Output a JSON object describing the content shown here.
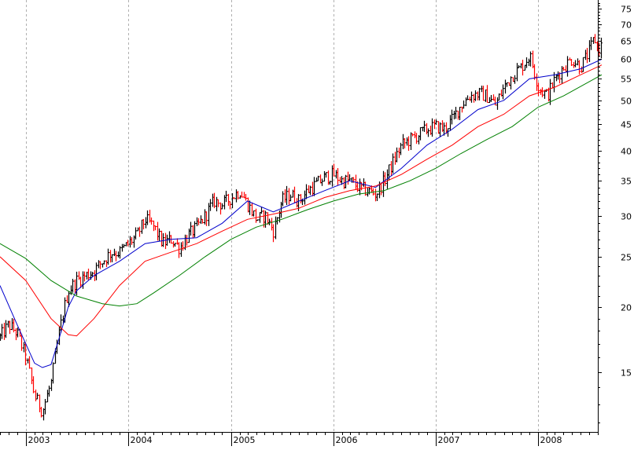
{
  "chart_data": {
    "type": "line",
    "subtype": "ohlc-bar-with-moving-averages",
    "title": "",
    "xlabel": "",
    "ylabel": "",
    "y_scale": "log",
    "ylim": [
      11.5,
      78
    ],
    "y_ticks": [
      15,
      20,
      25,
      30,
      35,
      40,
      45,
      50,
      55,
      60,
      65,
      70,
      75
    ],
    "y_axis_position": "right",
    "x_ticks": [
      "2003",
      "2004",
      "2005",
      "2006",
      "2007",
      "2008"
    ],
    "xlim": [
      "2002-10",
      "2008-08"
    ],
    "grid": {
      "vertical": "dashed-gray",
      "horizontal": "off"
    },
    "colors": {
      "up_bar": "#000000",
      "down_bar": "#ff0000",
      "ma_fast": "#0000cc",
      "ma_mid": "#ff0000",
      "ma_slow": "#008000"
    },
    "price_path": [
      [
        "2002-10-01",
        17.5
      ],
      [
        "2002-11-01",
        18.5
      ],
      [
        "2002-12-01",
        17.8
      ],
      [
        "2003-01-01",
        16.0
      ],
      [
        "2003-02-01",
        13.5
      ],
      [
        "2003-03-01",
        12.6
      ],
      [
        "2003-04-01",
        14.3
      ],
      [
        "2003-05-01",
        18.0
      ],
      [
        "2003-06-01",
        21.5
      ],
      [
        "2003-07-01",
        22.5
      ],
      [
        "2003-08-01",
        23.0
      ],
      [
        "2003-09-01",
        23.5
      ],
      [
        "2003-10-01",
        24.5
      ],
      [
        "2003-11-01",
        25.5
      ],
      [
        "2003-12-01",
        25.5
      ],
      [
        "2004-01-01",
        26.5
      ],
      [
        "2004-02-01",
        27.5
      ],
      [
        "2004-03-01",
        29.5
      ],
      [
        "2004-04-01",
        28.5
      ],
      [
        "2004-05-01",
        26.5
      ],
      [
        "2004-06-01",
        27.0
      ],
      [
        "2004-07-01",
        26.0
      ],
      [
        "2004-08-01",
        27.5
      ],
      [
        "2004-09-01",
        28.5
      ],
      [
        "2004-10-01",
        30.0
      ],
      [
        "2004-11-01",
        32.0
      ],
      [
        "2004-12-01",
        31.5
      ],
      [
        "2005-01-01",
        32.5
      ],
      [
        "2005-02-01",
        33.5
      ],
      [
        "2005-03-01",
        31.5
      ],
      [
        "2005-04-01",
        29.5
      ],
      [
        "2005-05-01",
        30.0
      ],
      [
        "2005-06-01",
        28.0
      ],
      [
        "2005-07-01",
        32.0
      ],
      [
        "2005-08-01",
        33.0
      ],
      [
        "2005-09-01",
        32.0
      ],
      [
        "2005-10-01",
        33.5
      ],
      [
        "2005-11-01",
        34.5
      ],
      [
        "2005-12-01",
        35.5
      ],
      [
        "2006-01-01",
        36.0
      ],
      [
        "2006-02-01",
        35.0
      ],
      [
        "2006-03-01",
        35.0
      ],
      [
        "2006-04-01",
        34.0
      ],
      [
        "2006-05-01",
        33.5
      ],
      [
        "2006-06-01",
        33.0
      ],
      [
        "2006-07-01",
        35.0
      ],
      [
        "2006-08-01",
        38.0
      ],
      [
        "2006-09-01",
        41.0
      ],
      [
        "2006-10-01",
        42.0
      ],
      [
        "2006-11-01",
        43.0
      ],
      [
        "2006-12-01",
        44.0
      ],
      [
        "2007-01-01",
        44.5
      ],
      [
        "2007-02-01",
        44.0
      ],
      [
        "2007-03-01",
        46.0
      ],
      [
        "2007-04-01",
        49.0
      ],
      [
        "2007-05-01",
        51.0
      ],
      [
        "2007-06-01",
        51.5
      ],
      [
        "2007-07-01",
        51.0
      ],
      [
        "2007-08-01",
        49.0
      ],
      [
        "2007-09-01",
        53.0
      ],
      [
        "2007-10-01",
        56.0
      ],
      [
        "2007-11-01",
        58.0
      ],
      [
        "2007-12-01",
        61.0
      ],
      [
        "2008-01-01",
        53.0
      ],
      [
        "2008-02-01",
        51.0
      ],
      [
        "2008-03-01",
        55.0
      ],
      [
        "2008-04-01",
        58.0
      ],
      [
        "2008-05-01",
        60.0
      ],
      [
        "2008-06-01",
        58.0
      ],
      [
        "2008-07-01",
        62.0
      ],
      [
        "2008-07-20",
        66.0
      ],
      [
        "2008-08-01",
        62.5
      ],
      [
        "2008-08-15",
        64.0
      ]
    ],
    "series": [
      {
        "style": "ma-fast",
        "points": [
          [
            "2002-10-01",
            22.0
          ],
          [
            "2002-12-01",
            18.5
          ],
          [
            "2003-02-01",
            15.6
          ],
          [
            "2003-03-01",
            15.3
          ],
          [
            "2003-04-01",
            15.5
          ],
          [
            "2003-05-01",
            17.5
          ],
          [
            "2003-06-01",
            20.0
          ],
          [
            "2003-07-01",
            21.5
          ],
          [
            "2003-09-01",
            23.0
          ],
          [
            "2003-12-01",
            24.5
          ],
          [
            "2004-03-01",
            26.5
          ],
          [
            "2004-06-01",
            27.0
          ],
          [
            "2004-09-01",
            27.2
          ],
          [
            "2004-12-01",
            29.0
          ],
          [
            "2005-03-01",
            32.0
          ],
          [
            "2005-06-01",
            30.5
          ],
          [
            "2005-09-01",
            32.0
          ],
          [
            "2005-12-01",
            33.5
          ],
          [
            "2006-03-01",
            35.0
          ],
          [
            "2006-06-01",
            34.0
          ],
          [
            "2006-09-01",
            37.0
          ],
          [
            "2006-12-01",
            41.0
          ],
          [
            "2007-03-01",
            44.0
          ],
          [
            "2007-06-01",
            48.0
          ],
          [
            "2007-09-01",
            50.0
          ],
          [
            "2007-12-01",
            55.0
          ],
          [
            "2008-03-01",
            56.0
          ],
          [
            "2008-06-01",
            57.5
          ],
          [
            "2008-08-15",
            60.0
          ]
        ]
      },
      {
        "style": "ma-mid",
        "points": [
          [
            "2002-10-01",
            25.0
          ],
          [
            "2003-01-01",
            22.5
          ],
          [
            "2003-04-01",
            19.0
          ],
          [
            "2003-06-01",
            17.7
          ],
          [
            "2003-07-01",
            17.6
          ],
          [
            "2003-09-01",
            19.0
          ],
          [
            "2003-12-01",
            22.0
          ],
          [
            "2004-03-01",
            24.5
          ],
          [
            "2004-06-01",
            25.5
          ],
          [
            "2004-09-01",
            26.5
          ],
          [
            "2004-12-01",
            28.0
          ],
          [
            "2005-03-01",
            29.5
          ],
          [
            "2005-06-01",
            30.2
          ],
          [
            "2005-09-01",
            31.0
          ],
          [
            "2005-12-01",
            32.5
          ],
          [
            "2006-03-01",
            33.5
          ],
          [
            "2006-06-01",
            34.2
          ],
          [
            "2006-09-01",
            36.0
          ],
          [
            "2006-12-01",
            38.5
          ],
          [
            "2007-03-01",
            41.0
          ],
          [
            "2007-06-01",
            44.5
          ],
          [
            "2007-09-01",
            47.0
          ],
          [
            "2007-12-01",
            51.0
          ],
          [
            "2008-03-01",
            53.0
          ],
          [
            "2008-06-01",
            56.0
          ],
          [
            "2008-08-15",
            58.5
          ]
        ]
      },
      {
        "style": "ma-slow",
        "points": [
          [
            "2002-10-01",
            26.5
          ],
          [
            "2003-01-01",
            24.8
          ],
          [
            "2003-04-01",
            22.5
          ],
          [
            "2003-07-01",
            21.0
          ],
          [
            "2003-10-01",
            20.3
          ],
          [
            "2003-12-01",
            20.1
          ],
          [
            "2004-02-01",
            20.3
          ],
          [
            "2004-04-01",
            21.3
          ],
          [
            "2004-07-01",
            23.0
          ],
          [
            "2004-10-01",
            25.0
          ],
          [
            "2005-01-01",
            27.0
          ],
          [
            "2005-04-01",
            28.5
          ],
          [
            "2005-07-01",
            29.5
          ],
          [
            "2005-10-01",
            30.8
          ],
          [
            "2006-01-01",
            32.0
          ],
          [
            "2006-04-01",
            33.0
          ],
          [
            "2006-07-01",
            33.5
          ],
          [
            "2006-10-01",
            35.0
          ],
          [
            "2007-01-01",
            37.0
          ],
          [
            "2007-04-01",
            39.5
          ],
          [
            "2007-07-01",
            42.0
          ],
          [
            "2007-10-01",
            44.5
          ],
          [
            "2008-01-01",
            48.5
          ],
          [
            "2008-04-01",
            51.0
          ],
          [
            "2008-08-15",
            56.0
          ]
        ]
      }
    ]
  }
}
